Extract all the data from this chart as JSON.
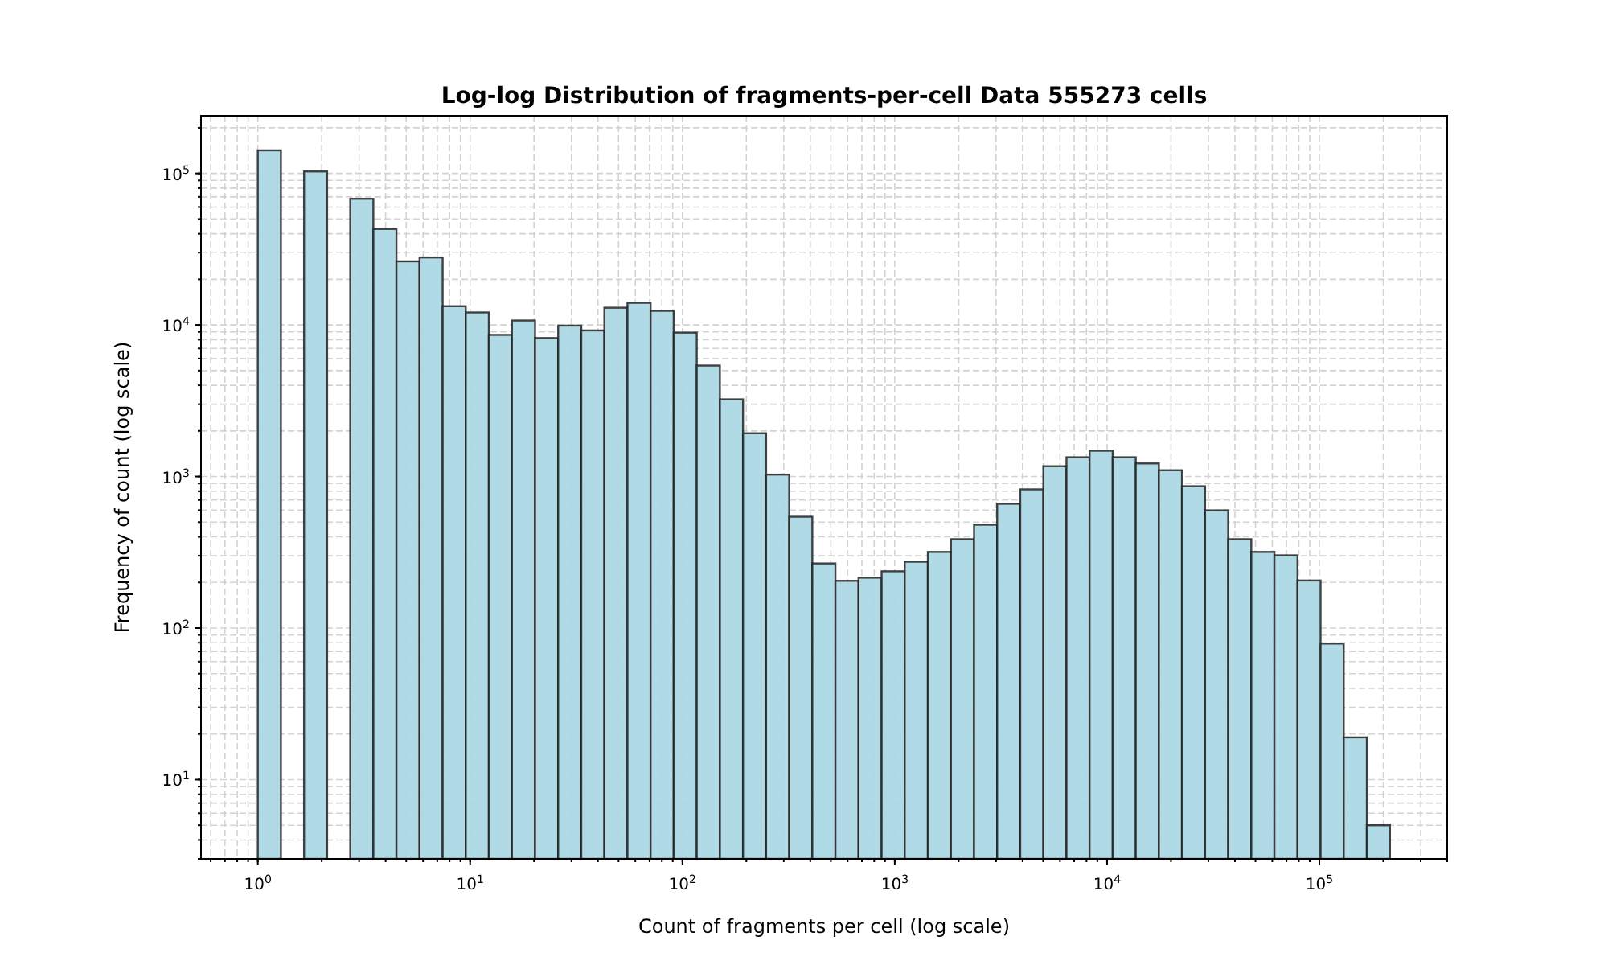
{
  "chart_data": {
    "type": "histogram",
    "title": "Log-log Distribution of fragments-per-cell Data 555273 cells",
    "xlabel": "Count of fragments per cell (log scale)",
    "ylabel": "Frequency of count (log scale)",
    "bins": [
      1,
      1.285,
      1.651,
      2.121,
      2.725,
      3.501,
      4.498,
      5.778,
      7.424,
      9.537,
      12.25,
      15.74,
      20.22,
      25.98,
      33.38,
      42.88,
      55.09,
      70.78,
      90.94,
      116.8,
      150.1,
      192.9,
      247.8,
      318.4,
      409.0,
      525.5,
      675.1,
      867.3,
      1114,
      1432,
      1839,
      2363,
      3036,
      3900,
      5011,
      6438,
      8271,
      10630,
      13650,
      17540,
      22530,
      28950,
      37190,
      47790,
      61400,
      78880,
      101300,
      130200,
      167300,
      215000
    ],
    "values": [
      142000,
      null,
      103000,
      null,
      68000,
      43000,
      26300,
      27900,
      13300,
      12100,
      8600,
      10700,
      8200,
      9900,
      9200,
      13000,
      14000,
      12400,
      8900,
      5400,
      3230,
      1930,
      1030,
      543,
      267,
      205,
      215,
      237,
      274,
      318,
      386,
      481,
      661,
      823,
      1170,
      1340,
      1480,
      1340,
      1220,
      1100,
      863,
      598,
      386,
      318,
      302,
      206,
      79,
      19,
      5
    ],
    "color": "#add8e6",
    "log": "xy",
    "grid": true,
    "xlim": [
      0.54,
      400000
    ],
    "ylim": [
      3,
      240000
    ],
    "xticks": [
      {
        "value": 1,
        "label": "10$^{0}$"
      },
      {
        "value": 10,
        "label": "10$^{1}$"
      },
      {
        "value": 100,
        "label": "10$^{2}$"
      },
      {
        "value": 1000,
        "label": "10$^{3}$"
      },
      {
        "value": 10000,
        "label": "10$^{4}$"
      },
      {
        "value": 100000,
        "label": "10$^{5}$"
      }
    ],
    "yticks": [
      {
        "value": 10,
        "label": "10$^{1}$"
      },
      {
        "value": 100,
        "label": "10$^{2}$"
      },
      {
        "value": 1000,
        "label": "10$^{3}$"
      },
      {
        "value": 10000,
        "label": "10$^{4}$"
      },
      {
        "value": 100000,
        "label": "10$^{5}$"
      }
    ]
  }
}
